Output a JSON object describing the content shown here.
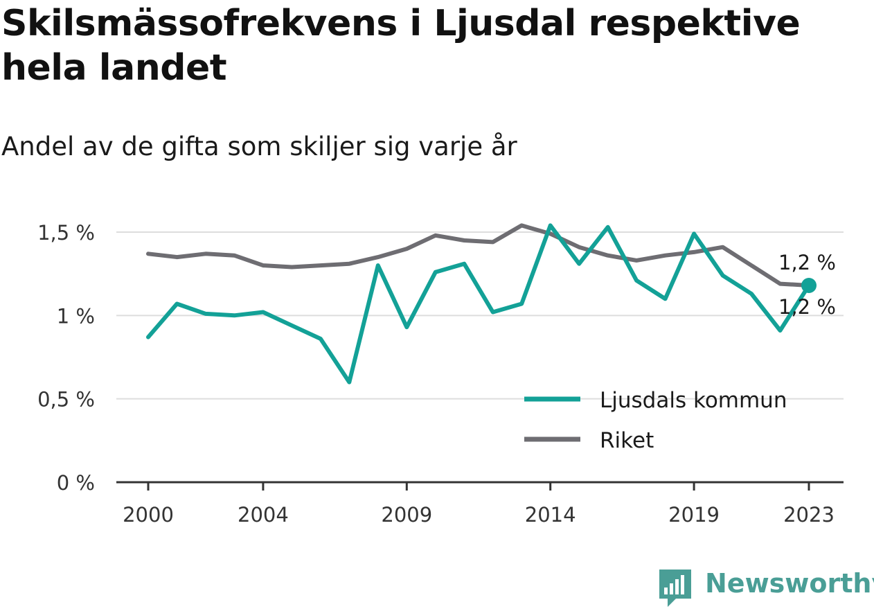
{
  "title": "Skilsmässofrekvens i Ljusdal respektive hela landet",
  "subtitle": "Andel av de gifta som skiljer sig varje år",
  "brand": {
    "name": "Newsworthy",
    "icon": "newsworthy-logo-icon"
  },
  "colors": {
    "ljusdal": "#13a197",
    "riket": "#6e6d72",
    "grid": "#dddddd",
    "axis": "#333333"
  },
  "chart_data": {
    "type": "line",
    "x": [
      2000,
      2001,
      2002,
      2003,
      2004,
      2005,
      2006,
      2007,
      2008,
      2009,
      2010,
      2011,
      2012,
      2013,
      2014,
      2015,
      2016,
      2017,
      2018,
      2019,
      2020,
      2021,
      2022,
      2023
    ],
    "x_ticks": [
      2000,
      2004,
      2009,
      2014,
      2019,
      2023
    ],
    "x_tick_labels": [
      "2000",
      "2004",
      "2009",
      "2014",
      "2019",
      "2023"
    ],
    "y_ticks": [
      0,
      0.5,
      1,
      1.5
    ],
    "y_tick_labels": [
      "0 %",
      "0,5 %",
      "1 %",
      "1,5 %"
    ],
    "ylim": [
      0,
      1.5
    ],
    "xlim": [
      2000,
      2023
    ],
    "grid": true,
    "legend_position": "bottom-right",
    "series": [
      {
        "name": "Ljusdals kommun",
        "color": "#13a197",
        "values": [
          0.87,
          1.07,
          1.01,
          1.0,
          1.02,
          0.94,
          0.86,
          0.6,
          1.3,
          0.93,
          1.26,
          1.31,
          1.02,
          1.07,
          1.54,
          1.31,
          1.53,
          1.21,
          1.1,
          1.49,
          1.24,
          1.13,
          0.91,
          1.18
        ],
        "end_label": "1,2 %"
      },
      {
        "name": "Riket",
        "color": "#6e6d72",
        "values": [
          1.37,
          1.35,
          1.37,
          1.36,
          1.3,
          1.29,
          1.3,
          1.31,
          1.35,
          1.4,
          1.48,
          1.45,
          1.44,
          1.54,
          1.49,
          1.41,
          1.36,
          1.33,
          1.36,
          1.38,
          1.41,
          1.3,
          1.19,
          1.18
        ],
        "end_label": "1,2 %"
      }
    ]
  }
}
